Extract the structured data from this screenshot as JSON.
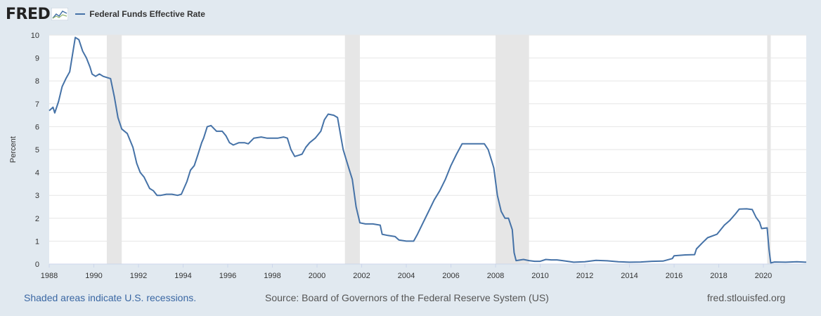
{
  "header": {
    "logo_text": "FRED",
    "logo_icon": "trend-chart-icon"
  },
  "footer": {
    "recession_note": "Shaded areas indicate U.S. recessions.",
    "source": "Source: Board of Governors of the Federal Reserve System (US)",
    "site": "fred.stlouisfed.org"
  },
  "chart_data": {
    "type": "line",
    "title": "",
    "xlabel": "",
    "ylabel": "Percent",
    "xlim": [
      1988.0,
      2021.92
    ],
    "ylim": [
      0,
      10
    ],
    "x_ticks": [
      "1988",
      "1990",
      "1992",
      "1994",
      "1996",
      "1998",
      "2000",
      "2002",
      "2004",
      "2006",
      "2008",
      "2010",
      "2012",
      "2014",
      "2016",
      "2018",
      "2020"
    ],
    "y_ticks": [
      "0",
      "1",
      "2",
      "3",
      "4",
      "5",
      "6",
      "7",
      "8",
      "9",
      "10"
    ],
    "grid": true,
    "legend_position": "top-left",
    "colors": {
      "series": "#4572a7",
      "recession": "#e6e6e6",
      "grid": "#e6e6e6",
      "plot_bg": "#ffffff"
    },
    "recessions": [
      [
        1990.58,
        1991.25
      ],
      [
        2001.25,
        2001.92
      ],
      [
        2008.0,
        2009.5
      ],
      [
        2020.17,
        2020.33
      ]
    ],
    "series": [
      {
        "name": "Federal Funds Effective Rate",
        "points": [
          [
            1988.0,
            6.7
          ],
          [
            1988.17,
            6.85
          ],
          [
            1988.25,
            6.6
          ],
          [
            1988.42,
            7.1
          ],
          [
            1988.58,
            7.75
          ],
          [
            1988.75,
            8.1
          ],
          [
            1988.92,
            8.4
          ],
          [
            1989.17,
            9.9
          ],
          [
            1989.33,
            9.8
          ],
          [
            1989.5,
            9.3
          ],
          [
            1989.67,
            9.0
          ],
          [
            1989.83,
            8.6
          ],
          [
            1989.92,
            8.3
          ],
          [
            1990.08,
            8.2
          ],
          [
            1990.25,
            8.3
          ],
          [
            1990.42,
            8.2
          ],
          [
            1990.58,
            8.15
          ],
          [
            1990.75,
            8.1
          ],
          [
            1990.92,
            7.3
          ],
          [
            1991.08,
            6.4
          ],
          [
            1991.25,
            5.9
          ],
          [
            1991.5,
            5.7
          ],
          [
            1991.75,
            5.1
          ],
          [
            1991.92,
            4.4
          ],
          [
            1992.08,
            4.0
          ],
          [
            1992.25,
            3.8
          ],
          [
            1992.5,
            3.3
          ],
          [
            1992.67,
            3.2
          ],
          [
            1992.83,
            3.0
          ],
          [
            1993.0,
            3.0
          ],
          [
            1993.25,
            3.05
          ],
          [
            1993.5,
            3.05
          ],
          [
            1993.75,
            3.0
          ],
          [
            1993.92,
            3.05
          ],
          [
            1994.17,
            3.6
          ],
          [
            1994.33,
            4.1
          ],
          [
            1994.5,
            4.3
          ],
          [
            1994.67,
            4.8
          ],
          [
            1994.83,
            5.3
          ],
          [
            1994.92,
            5.5
          ],
          [
            1995.08,
            6.0
          ],
          [
            1995.25,
            6.05
          ],
          [
            1995.5,
            5.8
          ],
          [
            1995.75,
            5.8
          ],
          [
            1995.92,
            5.6
          ],
          [
            1996.08,
            5.3
          ],
          [
            1996.25,
            5.2
          ],
          [
            1996.5,
            5.3
          ],
          [
            1996.75,
            5.3
          ],
          [
            1996.92,
            5.25
          ],
          [
            1997.17,
            5.5
          ],
          [
            1997.5,
            5.55
          ],
          [
            1997.75,
            5.5
          ],
          [
            1997.92,
            5.5
          ],
          [
            1998.25,
            5.5
          ],
          [
            1998.5,
            5.55
          ],
          [
            1998.67,
            5.5
          ],
          [
            1998.83,
            5.0
          ],
          [
            1999.0,
            4.7
          ],
          [
            1999.17,
            4.75
          ],
          [
            1999.33,
            4.8
          ],
          [
            1999.5,
            5.1
          ],
          [
            1999.67,
            5.3
          ],
          [
            1999.92,
            5.5
          ],
          [
            2000.17,
            5.8
          ],
          [
            2000.33,
            6.3
          ],
          [
            2000.5,
            6.55
          ],
          [
            2000.75,
            6.5
          ],
          [
            2000.92,
            6.4
          ],
          [
            2001.08,
            5.5
          ],
          [
            2001.17,
            5.0
          ],
          [
            2001.42,
            4.2
          ],
          [
            2001.58,
            3.7
          ],
          [
            2001.75,
            2.5
          ],
          [
            2001.92,
            1.8
          ],
          [
            2002.17,
            1.75
          ],
          [
            2002.5,
            1.75
          ],
          [
            2002.83,
            1.7
          ],
          [
            2002.92,
            1.3
          ],
          [
            2003.17,
            1.25
          ],
          [
            2003.5,
            1.2
          ],
          [
            2003.67,
            1.05
          ],
          [
            2004.0,
            1.0
          ],
          [
            2004.33,
            1.0
          ],
          [
            2004.5,
            1.3
          ],
          [
            2004.75,
            1.8
          ],
          [
            2005.0,
            2.3
          ],
          [
            2005.25,
            2.8
          ],
          [
            2005.5,
            3.2
          ],
          [
            2005.75,
            3.7
          ],
          [
            2006.0,
            4.3
          ],
          [
            2006.25,
            4.8
          ],
          [
            2006.5,
            5.25
          ],
          [
            2006.75,
            5.25
          ],
          [
            2007.0,
            5.25
          ],
          [
            2007.5,
            5.25
          ],
          [
            2007.67,
            5.0
          ],
          [
            2007.83,
            4.5
          ],
          [
            2007.92,
            4.2
          ],
          [
            2008.08,
            3.0
          ],
          [
            2008.25,
            2.3
          ],
          [
            2008.42,
            2.0
          ],
          [
            2008.58,
            2.0
          ],
          [
            2008.75,
            1.5
          ],
          [
            2008.83,
            0.5
          ],
          [
            2008.92,
            0.15
          ],
          [
            2009.25,
            0.2
          ],
          [
            2009.5,
            0.15
          ],
          [
            2009.75,
            0.12
          ],
          [
            2010.0,
            0.12
          ],
          [
            2010.25,
            0.2
          ],
          [
            2010.5,
            0.18
          ],
          [
            2010.75,
            0.18
          ],
          [
            2011.0,
            0.15
          ],
          [
            2011.5,
            0.08
          ],
          [
            2012.0,
            0.1
          ],
          [
            2012.5,
            0.16
          ],
          [
            2013.0,
            0.14
          ],
          [
            2013.5,
            0.1
          ],
          [
            2014.0,
            0.08
          ],
          [
            2014.5,
            0.09
          ],
          [
            2015.0,
            0.12
          ],
          [
            2015.5,
            0.13
          ],
          [
            2015.92,
            0.24
          ],
          [
            2016.0,
            0.36
          ],
          [
            2016.5,
            0.4
          ],
          [
            2016.92,
            0.41
          ],
          [
            2017.0,
            0.66
          ],
          [
            2017.25,
            0.91
          ],
          [
            2017.5,
            1.15
          ],
          [
            2017.92,
            1.3
          ],
          [
            2018.25,
            1.7
          ],
          [
            2018.5,
            1.91
          ],
          [
            2018.75,
            2.19
          ],
          [
            2018.92,
            2.4
          ],
          [
            2019.25,
            2.41
          ],
          [
            2019.5,
            2.38
          ],
          [
            2019.67,
            2.04
          ],
          [
            2019.83,
            1.83
          ],
          [
            2019.92,
            1.55
          ],
          [
            2020.17,
            1.58
          ],
          [
            2020.25,
            0.65
          ],
          [
            2020.33,
            0.05
          ],
          [
            2020.5,
            0.09
          ],
          [
            2021.0,
            0.08
          ],
          [
            2021.5,
            0.1
          ],
          [
            2021.92,
            0.08
          ]
        ]
      }
    ]
  }
}
